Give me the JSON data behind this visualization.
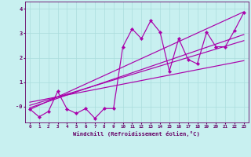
{
  "bg_color": "#c8f0f0",
  "line_color": "#aa00aa",
  "grid_color": "#aadddd",
  "axis_color": "#660066",
  "xlabel": "Windchill (Refroidissement éolien,°C)",
  "xlim": [
    -0.5,
    23.5
  ],
  "ylim": [
    -0.65,
    4.3
  ],
  "ytick_positions": [
    0,
    1,
    2,
    3,
    4
  ],
  "ytick_labels": [
    "-0",
    "1",
    "2",
    "3",
    "4"
  ],
  "xticks": [
    0,
    1,
    2,
    3,
    4,
    5,
    6,
    7,
    8,
    9,
    10,
    11,
    12,
    13,
    14,
    15,
    16,
    17,
    18,
    19,
    20,
    21,
    22,
    23
  ],
  "data_x": [
    0,
    1,
    2,
    3,
    4,
    5,
    6,
    7,
    8,
    9,
    10,
    11,
    12,
    13,
    14,
    15,
    16,
    17,
    18,
    19,
    20,
    21,
    22,
    23
  ],
  "data_y": [
    -0.1,
    -0.42,
    -0.2,
    0.62,
    -0.1,
    -0.28,
    -0.08,
    -0.48,
    -0.08,
    -0.08,
    2.45,
    3.18,
    2.78,
    3.52,
    3.05,
    1.45,
    2.78,
    1.93,
    1.75,
    3.05,
    2.45,
    2.45,
    3.12,
    3.85
  ],
  "reg_lines": [
    {
      "x0": 0,
      "y0": -0.12,
      "x1": 23,
      "y1": 3.88
    },
    {
      "x0": 0,
      "y0": -0.05,
      "x1": 23,
      "y1": 2.95
    },
    {
      "x0": 0,
      "y0": 0.05,
      "x1": 23,
      "y1": 2.7
    },
    {
      "x0": 0,
      "y0": 0.18,
      "x1": 23,
      "y1": 1.88
    }
  ]
}
